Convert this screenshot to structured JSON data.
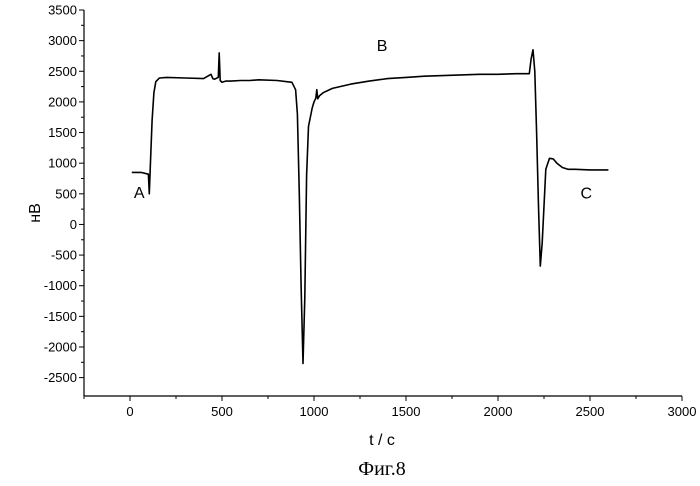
{
  "chart_data": {
    "type": "line",
    "xlabel": "t / c",
    "ylabel": "нВ",
    "xlim": [
      -250,
      3000
    ],
    "ylim": [
      -2800,
      3500
    ],
    "x_ticks": [
      0,
      500,
      1000,
      1500,
      2000,
      2500,
      3000
    ],
    "y_ticks": [
      -2500,
      -2000,
      -1500,
      -1000,
      -500,
      0,
      500,
      1000,
      1500,
      2000,
      2500,
      3000,
      3500
    ],
    "grid": false,
    "caption": "Фиг.8",
    "annotations": [
      {
        "text": "A",
        "x": 50,
        "y": 430
      },
      {
        "text": "B",
        "x": 1370,
        "y": 2830
      },
      {
        "text": "C",
        "x": 2480,
        "y": 420
      }
    ],
    "series": [
      {
        "x": [
          10,
          60,
          100,
          105,
          110,
          120,
          130,
          140,
          160,
          200,
          300,
          400,
          440,
          450,
          460,
          480,
          485,
          490,
          500,
          520,
          550,
          600,
          650,
          700,
          800,
          880,
          900,
          910,
          920,
          930,
          940,
          950,
          960,
          970,
          990,
          1000,
          1010,
          1015,
          1020,
          1030,
          1050,
          1100,
          1200,
          1300,
          1400,
          1500,
          1600,
          1700,
          1800,
          1900,
          2000,
          2100,
          2170,
          2180,
          2190,
          2200,
          2210,
          2220,
          2230,
          2240,
          2250,
          2260,
          2280,
          2300,
          2320,
          2350,
          2380,
          2420,
          2500,
          2600
        ],
        "y": [
          850,
          850,
          820,
          500,
          900,
          1700,
          2150,
          2330,
          2390,
          2400,
          2390,
          2380,
          2450,
          2380,
          2370,
          2400,
          2800,
          2350,
          2320,
          2340,
          2340,
          2350,
          2350,
          2360,
          2350,
          2320,
          2200,
          1800,
          500,
          -1000,
          -2270,
          -1200,
          800,
          1600,
          1900,
          2000,
          2060,
          2200,
          2050,
          2100,
          2150,
          2220,
          2290,
          2340,
          2380,
          2400,
          2420,
          2430,
          2440,
          2450,
          2450,
          2460,
          2460,
          2700,
          2850,
          2500,
          1500,
          300,
          -680,
          -300,
          300,
          900,
          1080,
          1070,
          1000,
          930,
          900,
          900,
          890,
          890
        ]
      }
    ]
  }
}
